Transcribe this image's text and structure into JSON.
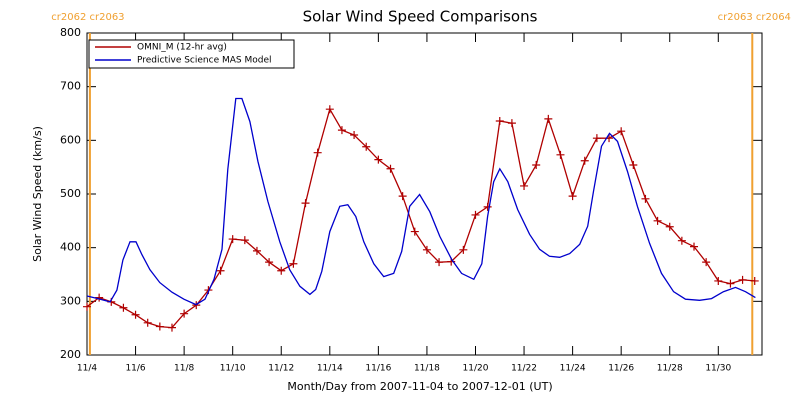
{
  "chart_data": {
    "type": "line",
    "title": "Solar Wind Speed Comparisons",
    "x_label": "Month/Day from 2007-11-04 to 2007-12-01 (UT)",
    "y_label": "Solar Wind Speed (km/s)",
    "xlim": [
      0,
      27.8
    ],
    "xticks": [
      {
        "value": 0,
        "label": "11/4"
      },
      {
        "value": 2,
        "label": "11/6"
      },
      {
        "value": 4,
        "label": "11/8"
      },
      {
        "value": 6,
        "label": "11/10"
      },
      {
        "value": 8,
        "label": "11/12"
      },
      {
        "value": 10,
        "label": "11/14"
      },
      {
        "value": 12,
        "label": "11/16"
      },
      {
        "value": 14,
        "label": "11/18"
      },
      {
        "value": 16,
        "label": "11/20"
      },
      {
        "value": 18,
        "label": "11/22"
      },
      {
        "value": 20,
        "label": "11/24"
      },
      {
        "value": 22,
        "label": "11/26"
      },
      {
        "value": 24,
        "label": "11/28"
      },
      {
        "value": 26,
        "label": "11/30"
      }
    ],
    "ylim": [
      200,
      800
    ],
    "yticks": [
      200,
      300,
      400,
      500,
      600,
      700,
      800
    ],
    "legend": "upper left",
    "annotations": [
      {
        "x": 0.12,
        "label": "cr2062 cr2063",
        "color": "#f0a030"
      },
      {
        "x": 27.4,
        "label": "cr2063 cr2064",
        "color": "#f0a030"
      }
    ],
    "series": [
      {
        "name": "OMNI_M (12-hr avg)",
        "color": "#b00000",
        "marker": "plus",
        "x": [
          0,
          0.5,
          1,
          1.5,
          2,
          2.5,
          3,
          3.5,
          4,
          4.5,
          5,
          5.5,
          6,
          6.5,
          7,
          7.5,
          8,
          8.5,
          9,
          9.5,
          10,
          10.5,
          11,
          11.5,
          12,
          12.5,
          13,
          13.5,
          14,
          14.5,
          15,
          15.5,
          16,
          16.5,
          17,
          17.5,
          18,
          18.5,
          19,
          19.5,
          20,
          20.5,
          21,
          21.5,
          22,
          22.5,
          23,
          23.5,
          24,
          24.5,
          25,
          25.5,
          26,
          26.5,
          27,
          27.5
        ],
        "values": [
          290,
          307,
          299,
          288,
          275,
          260,
          253,
          251,
          277,
          293,
          321,
          357,
          416,
          414,
          394,
          373,
          357,
          370,
          483,
          577,
          658,
          619,
          610,
          588,
          564,
          547,
          496,
          430,
          396,
          373,
          374,
          396,
          461,
          476,
          636,
          632,
          515,
          554,
          640,
          573,
          496,
          562,
          604,
          604,
          617,
          554,
          491,
          450,
          439,
          413,
          402,
          373,
          338,
          333,
          340,
          338
        ]
      },
      {
        "name": "Predictive Science MAS Model",
        "color": "#0000cc",
        "x": [
          0,
          0.45,
          0.95,
          1.23,
          1.48,
          1.77,
          2.02,
          2.26,
          2.59,
          3.0,
          3.5,
          3.99,
          4.49,
          4.86,
          5.23,
          5.56,
          5.8,
          6.13,
          6.38,
          6.71,
          7.04,
          7.45,
          7.94,
          8.35,
          8.77,
          9.18,
          9.42,
          9.67,
          10.0,
          10.41,
          10.74,
          11.07,
          11.4,
          11.81,
          12.22,
          12.63,
          12.96,
          13.29,
          13.7,
          14.12,
          14.53,
          15.02,
          15.43,
          15.93,
          16.26,
          16.5,
          16.75,
          17.0,
          17.33,
          17.74,
          18.23,
          18.64,
          19.05,
          19.47,
          19.88,
          20.29,
          20.62,
          20.86,
          21.19,
          21.52,
          21.85,
          22.26,
          22.67,
          23.17,
          23.66,
          24.16,
          24.65,
          25.23,
          25.72,
          26.21,
          26.71,
          27.12,
          27.53
        ],
        "values": [
          310,
          305,
          299,
          321,
          377,
          411,
          411,
          387,
          359,
          335,
          317,
          304,
          294,
          304,
          341,
          397,
          546,
          678,
          678,
          635,
          561,
          486,
          411,
          359,
          328,
          313,
          322,
          356,
          430,
          477,
          480,
          458,
          411,
          370,
          346,
          352,
          393,
          477,
          499,
          467,
          421,
          378,
          352,
          341,
          370,
          458,
          523,
          547,
          523,
          471,
          425,
          397,
          384,
          382,
          389,
          406,
          440,
          505,
          589,
          613,
          598,
          542,
          477,
          408,
          352,
          318,
          304,
          302,
          305,
          318,
          326,
          318,
          307
        ]
      }
    ]
  }
}
